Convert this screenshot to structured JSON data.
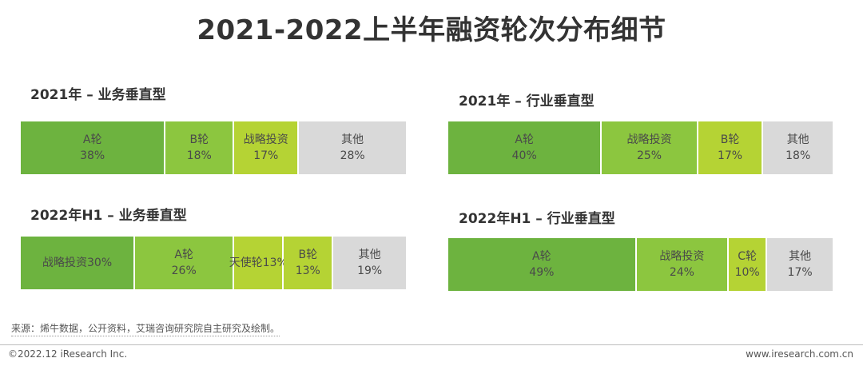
{
  "title": "2021-2022上半年融资轮次分布细节",
  "source": "来源：烯牛数据，公开资料，艾瑞咨询研究院自主研究及绘制。",
  "footer": {
    "copyright": "©2022.12 iResearch Inc.",
    "website": "www.iresearch.com.cn"
  },
  "colors": {
    "dark_green": "#6db33f",
    "mid_green": "#8cc63f",
    "light_green": "#b5d334",
    "gray": "#d9d9d9"
  },
  "chart_data": [
    {
      "type": "bar",
      "orientation": "horizontal-stacked-100",
      "title": "2021年 – 业务垂直型",
      "categories": [
        "A轮",
        "B轮",
        "战略投资",
        "其他"
      ],
      "values": [
        38,
        18,
        17,
        28
      ],
      "labels": [
        "38%",
        "18%",
        "17%",
        "28%"
      ],
      "colors": [
        "#6db33f",
        "#8cc63f",
        "#b5d334",
        "#d9d9d9"
      ]
    },
    {
      "type": "bar",
      "orientation": "horizontal-stacked-100",
      "title": "2021年 – 行业垂直型",
      "categories": [
        "A轮",
        "战略投资",
        "B轮",
        "其他"
      ],
      "values": [
        40,
        25,
        17,
        18
      ],
      "labels": [
        "40%",
        "25%",
        "17%",
        "18%"
      ],
      "colors": [
        "#6db33f",
        "#8cc63f",
        "#b5d334",
        "#d9d9d9"
      ]
    },
    {
      "type": "bar",
      "orientation": "horizontal-stacked-100",
      "title": "2022年H1 – 业务垂直型",
      "categories": [
        "战略投资",
        "A轮",
        "天使轮",
        "B轮",
        "其他"
      ],
      "values": [
        30,
        26,
        13,
        13,
        19
      ],
      "labels": [
        "30%",
        "26%",
        "13%",
        "13%",
        "19%"
      ],
      "inline": [
        true,
        false,
        true,
        false,
        false
      ],
      "colors": [
        "#6db33f",
        "#8cc63f",
        "#b5d334",
        "#b5d334",
        "#d9d9d9"
      ]
    },
    {
      "type": "bar",
      "orientation": "horizontal-stacked-100",
      "title": "2022年H1 – 行业垂直型",
      "categories": [
        "A轮",
        "战略投资",
        "C轮",
        "其他"
      ],
      "values": [
        49,
        24,
        10,
        17
      ],
      "labels": [
        "49%",
        "24%",
        "10%",
        "17%"
      ],
      "colors": [
        "#6db33f",
        "#8cc63f",
        "#b5d334",
        "#d9d9d9"
      ]
    }
  ]
}
